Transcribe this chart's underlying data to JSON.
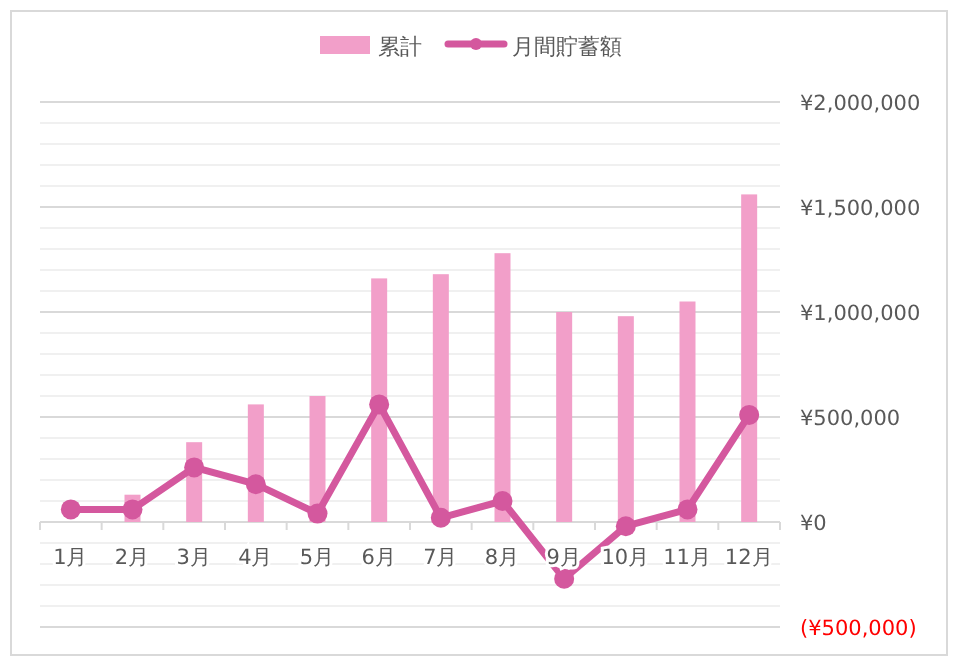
{
  "chart_data": {
    "type": "bar",
    "categories": [
      "1月",
      "2月",
      "3月",
      "4月",
      "5月",
      "6月",
      "7月",
      "8月",
      "9月",
      "10月",
      "11月",
      "12月"
    ],
    "series": [
      {
        "name": "累計",
        "color": "#f29fc9",
        "values": [
          null,
          130000,
          380000,
          560000,
          600000,
          1160000,
          1180000,
          1280000,
          1000000,
          980000,
          1050000,
          1560000
        ]
      },
      {
        "name": "月間貯蓄額",
        "type": "line",
        "color": "#d4589e",
        "marker": "circle",
        "line_style": "solid",
        "values": [
          60000,
          60000,
          260000,
          180000,
          40000,
          560000,
          20000,
          100000,
          -270000,
          -20000,
          60000,
          510000
        ]
      }
    ],
    "ylim": [
      -500000,
      2000000
    ],
    "yticks": [
      {
        "value": -500000,
        "label": "(¥500,000)"
      },
      {
        "value": -400000,
        "label": null
      },
      {
        "value": -300000,
        "label": null
      },
      {
        "value": -200000,
        "label": null
      },
      {
        "value": -100000,
        "label": null
      },
      {
        "value": 0,
        "label": "¥0"
      },
      {
        "value": 100000,
        "label": null
      },
      {
        "value": 200000,
        "label": null
      },
      {
        "value": 300000,
        "label": null
      },
      {
        "value": 400000,
        "label": null
      },
      {
        "value": 500000,
        "label": "¥500,000"
      },
      {
        "value": 600000,
        "label": null
      },
      {
        "value": 700000,
        "label": null
      },
      {
        "value": 800000,
        "label": null
      },
      {
        "value": 900000,
        "label": null
      },
      {
        "value": 1000000,
        "label": "¥1,000,000"
      },
      {
        "value": 1100000,
        "label": null
      },
      {
        "value": 1200000,
        "label": null
      },
      {
        "value": 1300000,
        "label": null
      },
      {
        "value": 1400000,
        "label": null
      },
      {
        "value": 1500000,
        "label": "¥1,500,000"
      },
      {
        "value": 1600000,
        "label": null
      },
      {
        "value": 1700000,
        "label": null
      },
      {
        "value": 1800000,
        "label": null
      },
      {
        "value": 1900000,
        "label": null
      },
      {
        "value": 2000000,
        "label": "¥2,000,000"
      }
    ],
    "grid": "y",
    "legend": "top"
  }
}
